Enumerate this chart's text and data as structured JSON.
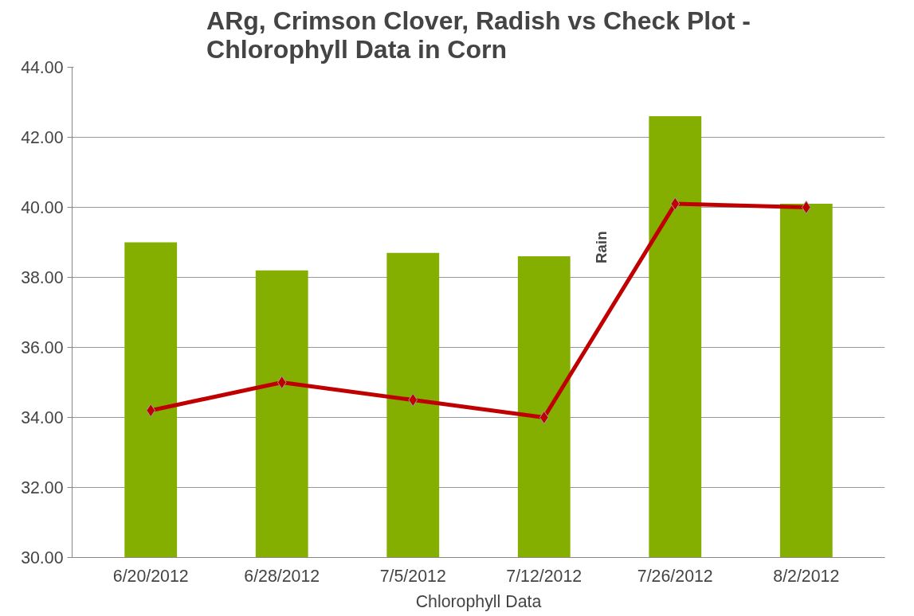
{
  "chart_data": {
    "type": "bar",
    "title": "ARg, Crimson Clover, Radish vs Check Plot - Chlorophyll Data in Corn",
    "xlabel": "Chlorophyll Data",
    "categories": [
      "6/20/2012",
      "6/28/2012",
      "7/5/2012",
      "7/12/2012",
      "7/26/2012",
      "8/2/2012"
    ],
    "series": [
      {
        "color": "#84ae00",
        "values": [
          39.0,
          38.2,
          38.7,
          38.6,
          42.6,
          40.1
        ]
      },
      {
        "type": "line",
        "color": "#c00000",
        "marker": "diamond",
        "line_style": "solid",
        "values": [
          34.2,
          35.0,
          34.5,
          34.0,
          40.1,
          40.0
        ]
      }
    ],
    "ylim": [
      30,
      44
    ],
    "yticks": [
      {
        "value": 30,
        "label": "30.00"
      },
      {
        "value": 32,
        "label": "32.00"
      },
      {
        "value": 34,
        "label": "34.00"
      },
      {
        "value": 36,
        "label": "36.00"
      },
      {
        "value": 38,
        "label": "38.00"
      },
      {
        "value": 40,
        "label": "40.00"
      },
      {
        "value": 42,
        "label": "42.00"
      },
      {
        "value": 44,
        "label": "44.00"
      }
    ],
    "grid": "y",
    "annotations": [
      "Rain"
    ]
  }
}
